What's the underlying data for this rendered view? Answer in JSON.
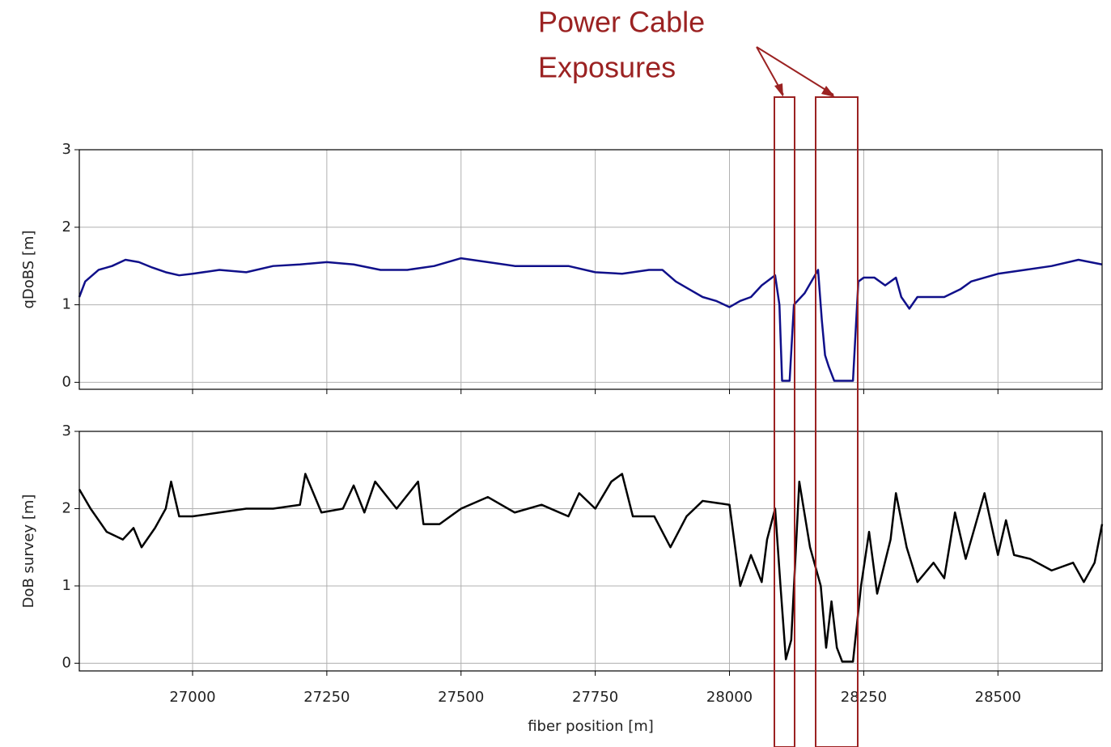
{
  "annotation": [
    "Power Cable",
    "Exposures"
  ],
  "chart_data": [
    {
      "type": "line",
      "ylabel": "qDoBS [m]",
      "color": "#10108a",
      "grid": true,
      "show_xticklabels": false,
      "xlim": [
        26789,
        28694
      ],
      "ylim": [
        -0.09,
        3
      ],
      "xticks": [
        27000,
        27250,
        27500,
        27750,
        28000,
        28250,
        28500
      ],
      "yticks": [
        0,
        1,
        2,
        3
      ],
      "x": [
        26789,
        26800,
        26825,
        26850,
        26875,
        26900,
        26925,
        26950,
        26975,
        27000,
        27050,
        27100,
        27150,
        27200,
        27250,
        27300,
        27350,
        27400,
        27450,
        27500,
        27550,
        27600,
        27650,
        27700,
        27750,
        27800,
        27850,
        27875,
        27900,
        27925,
        27950,
        27975,
        28000,
        28020,
        28040,
        28060,
        28085,
        28093,
        28098,
        28112,
        28120,
        28140,
        28165,
        28172,
        28178,
        28185,
        28195,
        28230,
        28240,
        28250,
        28270,
        28290,
        28310,
        28320,
        28335,
        28350,
        28400,
        28430,
        28450,
        28500,
        28550,
        28600,
        28650,
        28694
      ],
      "values": [
        1.1,
        1.3,
        1.45,
        1.5,
        1.58,
        1.55,
        1.48,
        1.42,
        1.38,
        1.4,
        1.45,
        1.42,
        1.5,
        1.52,
        1.55,
        1.52,
        1.45,
        1.45,
        1.5,
        1.6,
        1.55,
        1.5,
        1.5,
        1.5,
        1.42,
        1.4,
        1.45,
        1.45,
        1.3,
        1.2,
        1.1,
        1.05,
        0.97,
        1.05,
        1.1,
        1.25,
        1.38,
        1.0,
        0.02,
        0.02,
        1.0,
        1.15,
        1.45,
        0.8,
        0.35,
        0.2,
        0.02,
        0.02,
        1.3,
        1.35,
        1.35,
        1.25,
        1.35,
        1.1,
        0.95,
        1.1,
        1.1,
        1.2,
        1.3,
        1.4,
        1.45,
        1.5,
        1.58,
        1.52
      ]
    },
    {
      "type": "line",
      "ylabel": "DoB survey [m]",
      "xlabel": "fiber position [m]",
      "color": "#000000",
      "grid": true,
      "show_xticklabels": true,
      "xlim": [
        26789,
        28694
      ],
      "ylim": [
        -0.1,
        3
      ],
      "xticks": [
        27000,
        27250,
        27500,
        27750,
        28000,
        28250,
        28500
      ],
      "yticks": [
        0,
        1,
        2,
        3
      ],
      "x": [
        26789,
        26810,
        26840,
        26870,
        26890,
        26905,
        26930,
        26950,
        26960,
        26975,
        27000,
        27050,
        27100,
        27150,
        27200,
        27210,
        27240,
        27280,
        27300,
        27320,
        27340,
        27380,
        27420,
        27430,
        27460,
        27500,
        27550,
        27600,
        27650,
        27700,
        27720,
        27750,
        27780,
        27800,
        27820,
        27860,
        27890,
        27920,
        27950,
        28000,
        28020,
        28040,
        28060,
        28070,
        28085,
        28095,
        28105,
        28115,
        28130,
        28150,
        28170,
        28180,
        28190,
        28200,
        28210,
        28230,
        28245,
        28260,
        28275,
        28300,
        28310,
        28330,
        28350,
        28380,
        28400,
        28420,
        28440,
        28475,
        28500,
        28515,
        28530,
        28560,
        28600,
        28640,
        28660,
        28680,
        28694
      ],
      "values": [
        2.25,
        2.0,
        1.7,
        1.6,
        1.75,
        1.5,
        1.75,
        2.0,
        2.35,
        1.9,
        1.9,
        1.95,
        2.0,
        2.0,
        2.05,
        2.45,
        1.95,
        2.0,
        2.3,
        1.95,
        2.35,
        2.0,
        2.35,
        1.8,
        1.8,
        2.0,
        2.15,
        1.95,
        2.05,
        1.9,
        2.2,
        2.0,
        2.35,
        2.45,
        1.9,
        1.9,
        1.5,
        1.9,
        2.1,
        2.05,
        1.0,
        1.4,
        1.05,
        1.6,
        2.0,
        1.0,
        0.05,
        0.3,
        2.35,
        1.5,
        1.0,
        0.2,
        0.8,
        0.2,
        0.02,
        0.02,
        1.0,
        1.7,
        0.9,
        1.6,
        2.2,
        1.5,
        1.05,
        1.3,
        1.1,
        1.95,
        1.35,
        2.2,
        1.4,
        1.85,
        1.4,
        1.35,
        1.2,
        1.3,
        1.05,
        1.3,
        1.8
      ]
    }
  ]
}
